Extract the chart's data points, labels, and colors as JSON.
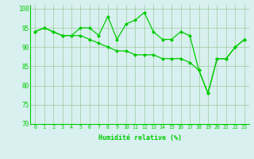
{
  "x": [
    0,
    1,
    2,
    3,
    4,
    5,
    6,
    7,
    8,
    9,
    10,
    11,
    12,
    13,
    14,
    15,
    16,
    17,
    18,
    19,
    20,
    21,
    22,
    23
  ],
  "line1": [
    94,
    95,
    94,
    93,
    93,
    95,
    95,
    93,
    98,
    92,
    96,
    97,
    99,
    94,
    92,
    92,
    94,
    93,
    84,
    78,
    87,
    87,
    90,
    92
  ],
  "line2": [
    94,
    95,
    94,
    93,
    93,
    93,
    92,
    91,
    90,
    89,
    89,
    88,
    88,
    88,
    87,
    87,
    87,
    86,
    84,
    78,
    87,
    87,
    90,
    92
  ],
  "color": "#00cc00",
  "bg_color": "#d8f0f0",
  "grid_color": "#99cc99",
  "xlabel": "Humidité relative (%)",
  "ylim": [
    70,
    101
  ],
  "xlim": [
    -0.5,
    23.5
  ],
  "yticks": [
    70,
    75,
    80,
    85,
    90,
    95,
    100
  ],
  "xticks": [
    0,
    1,
    2,
    3,
    4,
    5,
    6,
    7,
    8,
    9,
    10,
    11,
    12,
    13,
    14,
    15,
    16,
    17,
    18,
    19,
    20,
    21,
    22,
    23
  ]
}
